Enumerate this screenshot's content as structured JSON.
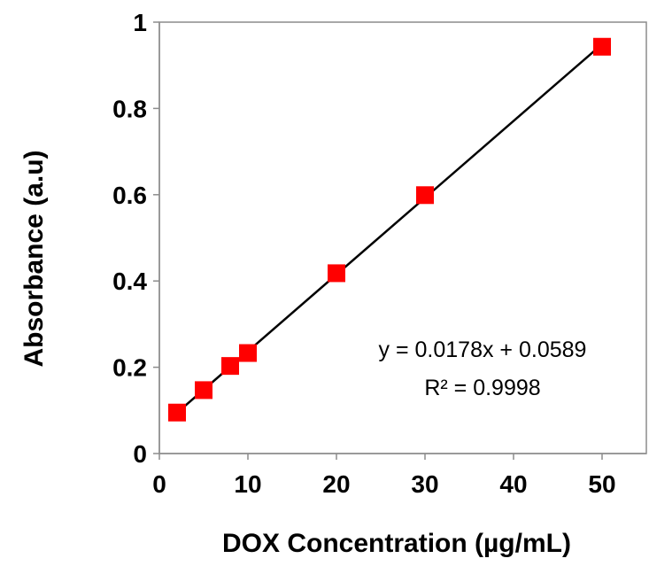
{
  "chart_data": {
    "type": "scatter",
    "title": "",
    "xlabel": "DOX Concentration (µg/mL)",
    "ylabel": "Absorbance (a.u)",
    "xlim": [
      0,
      55
    ],
    "ylim": [
      0,
      1
    ],
    "xticks": [
      0,
      10,
      20,
      30,
      40,
      50
    ],
    "xtick_labels": [
      "0",
      "10",
      "20",
      "30",
      "40",
      "50"
    ],
    "yticks": [
      0,
      0.2,
      0.4,
      0.6,
      0.8,
      1
    ],
    "ytick_labels": [
      "0",
      "0.2",
      "0.4",
      "0.6",
      "0.8",
      "1"
    ],
    "grid": false,
    "legend": "none",
    "series": [
      {
        "x": [
          2,
          5,
          8,
          10,
          20,
          30,
          50
        ],
        "y": [
          0.095,
          0.147,
          0.203,
          0.233,
          0.418,
          0.599,
          0.943
        ],
        "marker": "square",
        "color": "#ff0000"
      }
    ],
    "trendline": {
      "type": "linear",
      "slope": 0.0178,
      "intercept": 0.0589,
      "x_range": [
        2,
        50
      ],
      "color": "#000000"
    },
    "annotations": {
      "equation": "y = 0.0178x + 0.0589",
      "r_squared": "R² = 0.9998"
    }
  }
}
